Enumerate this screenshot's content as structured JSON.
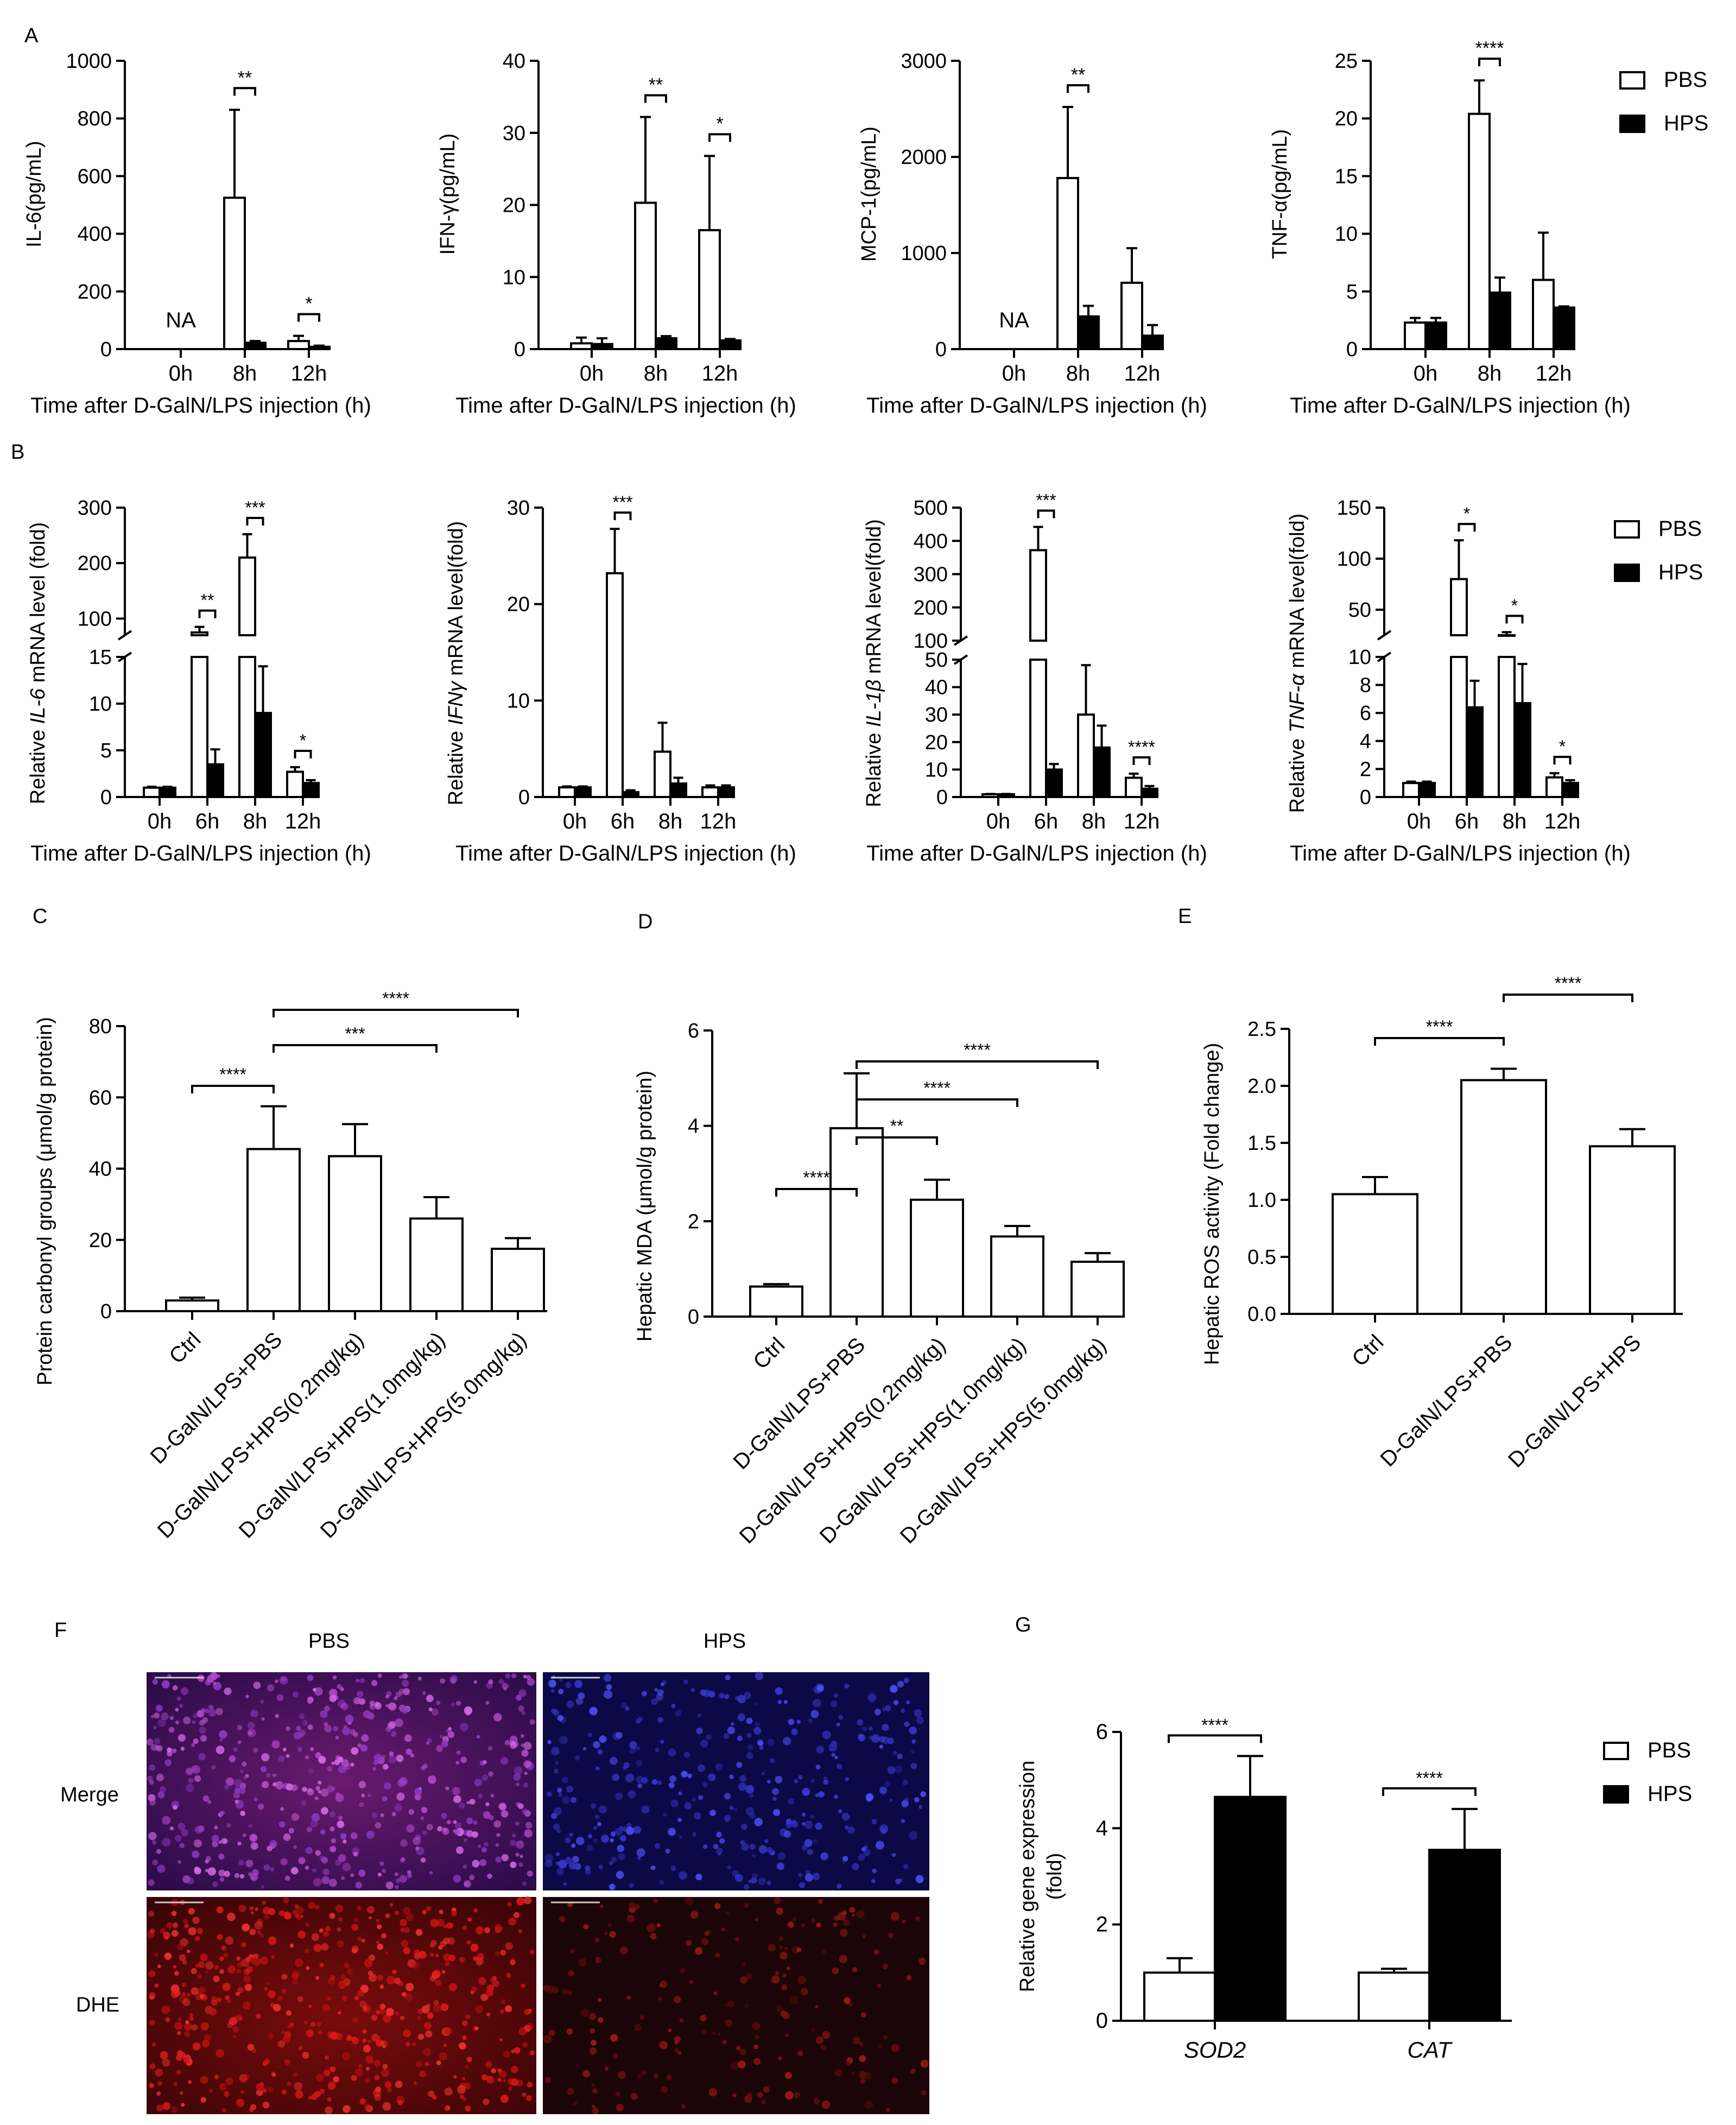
{
  "colors": {
    "pbs": "#ffffff",
    "hps": "#000000",
    "stroke": "#000000",
    "axis": "#000000"
  },
  "legend": {
    "pbs": "PBS",
    "hps": "HPS"
  },
  "chart_data": [
    {
      "id": "A1",
      "panel_label": "A",
      "type": "bar",
      "ylabel": "IL-6(pg/mL)",
      "xlabel": "Time after D-GalN/LPS injection (h)",
      "categories": [
        "0h",
        "8h",
        "12h"
      ],
      "yticks": [
        0,
        200,
        400,
        600,
        800,
        1000
      ],
      "ylim": [
        0,
        1000
      ],
      "series": [
        {
          "name": "PBS",
          "values": [
            0,
            525,
            28
          ],
          "err": [
            0,
            305,
            18
          ]
        },
        {
          "name": "HPS",
          "values": [
            0,
            22,
            8
          ],
          "err": [
            0,
            6,
            4
          ]
        }
      ],
      "annotations": [
        {
          "text": "NA",
          "category": 0
        },
        {
          "text": "**",
          "category": 1
        },
        {
          "text": "*",
          "category": 2
        }
      ],
      "legend_position": ""
    },
    {
      "id": "A2",
      "type": "bar",
      "ylabel": "IFN-γ(pg/mL)",
      "xlabel": "Time after D-GalN/LPS injection (h)",
      "categories": [
        "0h",
        "8h",
        "12h"
      ],
      "yticks": [
        0,
        10,
        20,
        30,
        40
      ],
      "ylim": [
        0,
        40
      ],
      "series": [
        {
          "name": "PBS",
          "values": [
            0.8,
            20.3,
            16.5
          ],
          "err": [
            0.8,
            11.9,
            10.3
          ]
        },
        {
          "name": "HPS",
          "values": [
            0.7,
            1.5,
            1.2
          ],
          "err": [
            0.8,
            0.3,
            0.2
          ]
        }
      ],
      "annotations": [
        {
          "text": "**",
          "category": 1
        },
        {
          "text": "*",
          "category": 2
        }
      ],
      "legend_position": ""
    },
    {
      "id": "A3",
      "type": "bar",
      "ylabel": "MCP-1(pg/mL)",
      "xlabel": "Time after D-GalN/LPS injection (h)",
      "categories": [
        "0h",
        "8h",
        "12h"
      ],
      "yticks": [
        0,
        1000,
        2000,
        3000
      ],
      "ylim": [
        0,
        3000
      ],
      "series": [
        {
          "name": "PBS",
          "values": [
            0,
            1780,
            690
          ],
          "err": [
            0,
            740,
            360
          ]
        },
        {
          "name": "HPS",
          "values": [
            0,
            340,
            140
          ],
          "err": [
            0,
            110,
            110
          ]
        }
      ],
      "annotations": [
        {
          "text": "NA",
          "category": 0
        },
        {
          "text": "**",
          "category": 1
        }
      ],
      "legend_position": ""
    },
    {
      "id": "A4",
      "type": "bar",
      "ylabel": "TNF-α(pg/mL)",
      "xlabel": "Time after D-GalN/LPS injection (h)",
      "categories": [
        "0h",
        "8h",
        "12h"
      ],
      "yticks": [
        0,
        5,
        10,
        15,
        20,
        25
      ],
      "ylim": [
        0,
        25
      ],
      "series": [
        {
          "name": "PBS",
          "values": [
            2.3,
            20.4,
            6.0
          ],
          "err": [
            0.4,
            2.9,
            4.1
          ]
        },
        {
          "name": "HPS",
          "values": [
            2.3,
            4.9,
            3.6
          ],
          "err": [
            0.4,
            1.3,
            0.1
          ]
        }
      ],
      "annotations": [
        {
          "text": "****",
          "category": 1
        }
      ],
      "legend_position": "right"
    },
    {
      "id": "B1",
      "panel_label": "B",
      "type": "bar",
      "ylabel_pre": "Relative ",
      "ylabel_italic": "IL-6",
      "ylabel_post": " mRNA level (fold)",
      "xlabel": "Time after D-GalN/LPS injection (h)",
      "categories": [
        "0h",
        "6h",
        "8h",
        "12h"
      ],
      "broken_axis": true,
      "lower": {
        "ticks": [
          0,
          5,
          10,
          15
        ],
        "max": 15
      },
      "upper": {
        "ticks": [
          100,
          200,
          300
        ],
        "min": 70,
        "max": 300
      },
      "series": [
        {
          "name": "PBS",
          "values": [
            1.0,
            75,
            210,
            2.7
          ],
          "err": [
            0.1,
            10,
            42,
            0.5
          ]
        },
        {
          "name": "HPS",
          "values": [
            1.0,
            3.5,
            9.0,
            1.5
          ],
          "err": [
            0.1,
            1.6,
            5.0,
            0.3
          ]
        }
      ],
      "annotations": [
        {
          "text": "**",
          "category": 1
        },
        {
          "text": "***",
          "category": 2
        },
        {
          "text": "*",
          "category": 3
        }
      ],
      "legend_position": ""
    },
    {
      "id": "B2",
      "type": "bar",
      "ylabel_pre": "Relative ",
      "ylabel_italic": "IFNγ",
      "ylabel_post": " mRNA level(fold)",
      "xlabel": "Time after D-GalN/LPS injection (h)",
      "categories": [
        "0h",
        "6h",
        "8h",
        "12h"
      ],
      "yticks": [
        0,
        10,
        20,
        30
      ],
      "ylim": [
        0,
        30
      ],
      "series": [
        {
          "name": "PBS",
          "values": [
            1.0,
            23.2,
            4.7,
            1.0
          ],
          "err": [
            0.1,
            4.6,
            3.0,
            0.2
          ]
        },
        {
          "name": "HPS",
          "values": [
            1.0,
            0.5,
            1.4,
            1.0
          ],
          "err": [
            0.1,
            0.2,
            0.6,
            0.2
          ]
        }
      ],
      "annotations": [
        {
          "text": "***",
          "category": 1
        }
      ],
      "legend_position": ""
    },
    {
      "id": "B3",
      "type": "bar",
      "ylabel_pre": "Relative ",
      "ylabel_italic": "IL-1β",
      "ylabel_post": " mRNA level(fold)",
      "xlabel": "Time after D-GalN/LPS injection (h)",
      "categories": [
        "0h",
        "6h",
        "8h",
        "12h"
      ],
      "broken_axis": true,
      "lower": {
        "ticks": [
          0,
          10,
          20,
          30,
          40,
          50
        ],
        "max": 50
      },
      "upper": {
        "ticks": [
          100,
          200,
          300,
          400,
          500
        ],
        "min": 100,
        "max": 500
      },
      "series": [
        {
          "name": "PBS",
          "values": [
            1.0,
            372,
            30,
            7
          ],
          "err": [
            0.1,
            70,
            18,
            1.5
          ]
        },
        {
          "name": "HPS",
          "values": [
            1.0,
            10,
            18,
            3
          ],
          "err": [
            0.1,
            2,
            8,
            1
          ]
        }
      ],
      "annotations": [
        {
          "text": "***",
          "category": 1
        },
        {
          "text": "****",
          "category": 3
        }
      ],
      "legend_position": ""
    },
    {
      "id": "B4",
      "type": "bar",
      "ylabel_pre": "Relative ",
      "ylabel_italic": "TNF-α",
      "ylabel_post": " mRNA level(fold)",
      "xlabel": "Time after D-GalN/LPS injection (h)",
      "categories": [
        "0h",
        "6h",
        "8h",
        "12h"
      ],
      "broken_axis": true,
      "lower": {
        "ticks": [
          0,
          2,
          4,
          6,
          8,
          10
        ],
        "max": 10
      },
      "upper": {
        "ticks": [
          50,
          100,
          150
        ],
        "min": 25,
        "max": 150
      },
      "series": [
        {
          "name": "PBS",
          "values": [
            1.0,
            80,
            25,
            1.4
          ],
          "err": [
            0.1,
            38,
            3,
            0.3
          ]
        },
        {
          "name": "HPS",
          "values": [
            1.0,
            6.4,
            6.7,
            1.0
          ],
          "err": [
            0.1,
            1.9,
            2.8,
            0.2
          ]
        }
      ],
      "annotations": [
        {
          "text": "*",
          "category": 1
        },
        {
          "text": "*",
          "category": 2
        },
        {
          "text": "*",
          "category": 3
        }
      ],
      "legend_position": "right"
    },
    {
      "id": "C",
      "panel_label": "C",
      "type": "bar",
      "ylabel": "Protein carbonyl groups (μmol/g protein)",
      "categories": [
        "Ctrl",
        "D-GalN/LPS+PBS",
        "D-GalN/LPS+HPS(0.2mg/kg)",
        "D-GalN/LPS+HPS(1.0mg/kg)",
        "D-GalN/LPS+HPS(5.0mg/kg)"
      ],
      "yticks": [
        0,
        20,
        40,
        60,
        80
      ],
      "ylim": [
        0,
        80
      ],
      "values": [
        3,
        45.5,
        43.5,
        26,
        17.5
      ],
      "err": [
        0.8,
        12,
        9,
        6,
        3
      ],
      "comparisons": [
        {
          "text": "****",
          "from": 0,
          "to": 1
        },
        {
          "text": "***",
          "from": 1,
          "to": 3
        },
        {
          "text": "****",
          "from": 1,
          "to": 4
        }
      ]
    },
    {
      "id": "D",
      "panel_label": "D",
      "type": "bar",
      "ylabel": "Hepatic MDA (μmol/g protein)",
      "categories": [
        "Ctrl",
        "D-GalN/LPS+PBS",
        "D-GalN/LPS+HPS(0.2mg/kg)",
        "D-GalN/LPS+HPS(1.0mg/kg)",
        "D-GalN/LPS+HPS(5.0mg/kg)"
      ],
      "yticks": [
        0,
        2,
        4,
        6
      ],
      "ylim": [
        0,
        6
      ],
      "values": [
        0.63,
        3.95,
        2.45,
        1.68,
        1.15
      ],
      "err": [
        0.05,
        1.15,
        0.42,
        0.22,
        0.18
      ],
      "comparisons": [
        {
          "text": "****",
          "from": 0,
          "to": 1
        },
        {
          "text": "**",
          "from": 1,
          "to": 2
        },
        {
          "text": "****",
          "from": 1,
          "to": 3
        },
        {
          "text": "****",
          "from": 1,
          "to": 4
        }
      ]
    },
    {
      "id": "E",
      "panel_label": "E",
      "type": "bar",
      "ylabel": "Hepatic ROS activity (Fold change)",
      "categories": [
        "Ctrl",
        "D-GalN/LPS+PBS",
        "D-GalN/LPS+HPS"
      ],
      "yticks": [
        "0.0",
        "0.5",
        "1.0",
        "1.5",
        "2.0",
        "2.5"
      ],
      "ylim": [
        0,
        2.5
      ],
      "values": [
        1.05,
        2.05,
        1.47
      ],
      "err": [
        0.15,
        0.1,
        0.15
      ],
      "comparisons": [
        {
          "text": "****",
          "from": 0,
          "to": 1
        },
        {
          "text": "****",
          "from": 1,
          "to": 2
        }
      ]
    },
    {
      "id": "G",
      "panel_label": "G",
      "type": "bar",
      "ylabel_line1": "Relative gene expression",
      "ylabel_line2": "(fold)",
      "categories": [
        "SOD2",
        "CAT"
      ],
      "yticks": [
        0,
        2,
        4,
        6
      ],
      "ylim": [
        0,
        6
      ],
      "series": [
        {
          "name": "PBS",
          "values": [
            1.0,
            1.0
          ],
          "err": [
            0.3,
            0.08
          ]
        },
        {
          "name": "HPS",
          "values": [
            4.65,
            3.55
          ],
          "err": [
            0.85,
            0.85
          ]
        }
      ],
      "annotations": [
        {
          "text": "****",
          "category": 0
        },
        {
          "text": "****",
          "category": 1
        }
      ],
      "legend_position": "right"
    }
  ],
  "panel_f": {
    "label": "F",
    "col_labels": [
      "PBS",
      "HPS"
    ],
    "row_labels": [
      "Merge",
      "DHE"
    ]
  }
}
